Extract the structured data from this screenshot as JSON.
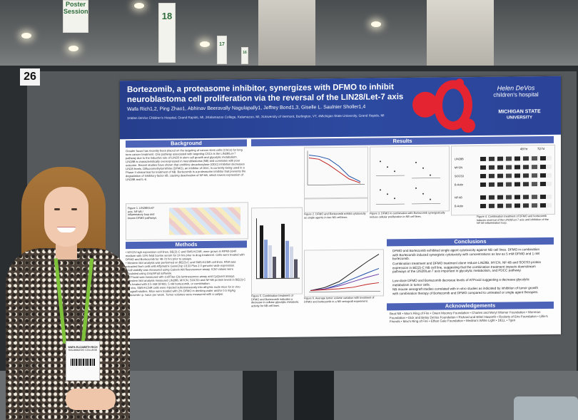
{
  "booth_number": "26",
  "banners": [
    {
      "label": "Poster Session"
    },
    {
      "label": "18"
    },
    {
      "label": "17"
    },
    {
      "label": "16"
    }
  ],
  "poster": {
    "title": "Bortezomib, a proteasome inhibitor, synergizes with DFMO to inhibit neuroblastoma cell proliferation via the reversal of the LIN28/Let-7 axis",
    "authors": "Wafa Rich1,2, Ping Zhao1, Abhinav Beeravally Nagulapally1, Jeffrey Bond1,3, Giselle L. Saulnier Sholler1,4",
    "affiliations": "1Helen DeVos Children's Hospital, Grand Rapids, MI, 2Kalamazoo College, Kalamazoo, MI, 3University of Vermont, Burlington, VT, 4Michigan State University, Grand Rapids, MI",
    "logo_hd_line1": "Helen DeVos",
    "logo_hd_line2": "children's hospital",
    "logo_msu_line1": "MICHIGAN STATE",
    "logo_msu_line2": "UNIVERSITY",
    "sections": {
      "background": "Background",
      "methods": "Methods",
      "results": "Results",
      "conclusions": "Conclusions",
      "acknowledgements": "Acknowledgements"
    },
    "conclusions_items": [
      "DFMO and Bortezomib exhibited single agent cytotoxicity against NB cell lines. DFMO in combination with Bortezomib induced synergistic cytotoxicity with concentrations as low as 5 mM DFMO and 1 nM bortezomib.",
      "Combination treatment and DFMO treatment alone reduce LIN28B, MYCN, NF-kB and SOCS3 protein expression in BE(2)-C NB cell line, suggesting that the combination treatment impacts downstream pathways of the LIN28/Let-7 axis important in glycolytic metabolism, and PDCC pathway.",
      "Low-dose DFMO and Bortezomib decrease levels of ATPoxid suggesting a decrease glycolytic metabolism in tumor cells.",
      "NB mouse xenograft studies correlated with in vitro studies as indicated by inhibition of tumor growth with combination therapy of Bortezomib and DFMO compared to untreated or single agent therapies."
    ],
    "acknowledgements_text": "Beat NB • Max's Ring of Fire • Owen Mooney Foundation • Charles and Meryl Wismer Foundation • Wenman Foundation • Dick and Betsy DeVos Foundation • Richard and Ethel Haworth • Rockets of Erie Foundation • Lillie's Friends • Max's Ring of Fire • Ethan Gale Foundation • Medina's White Light • DELL • Tgen",
    "fig_captions": [
      "Figure 1. LIN28B/Let7 axis. NF-kB / inflammatory loop and known DFMO pathways.",
      "Figure 2. DFMO and Bortezomib exhibit cytotoxicity as single agents in two NB cell lines.",
      "Figure 3. DFMO in combination with Bortezomib synergistically reduce cellular proliferation in NB cell lines.",
      "Figure 4. Combination treatment of DFMO and bortezomib induces reversal of the LIN28/Let-7 axis and inhibition of the NF-kB inflammation loop.",
      "Figure 5. Combination treatment of DFMO and Bortezomib indicates a decrease in cellular glycolytic metabolic activity for NB cell lines.",
      "Figure 6. Average tumor volume variation with treatment of DFMO and bortezomib in a NB xenograft experiment."
    ],
    "blot_labels": [
      "LIN28B",
      "MYCN",
      "SOCS3",
      "B-Actin",
      "NF-kB",
      "B-Actin"
    ],
    "blot_times": [
      "48 hr",
      "72 hr"
    ]
  },
  "badge": {
    "name_line1": "WAFA ELIZABETH RICH",
    "name_line2": "KALAMAZOO COLLEGE"
  }
}
